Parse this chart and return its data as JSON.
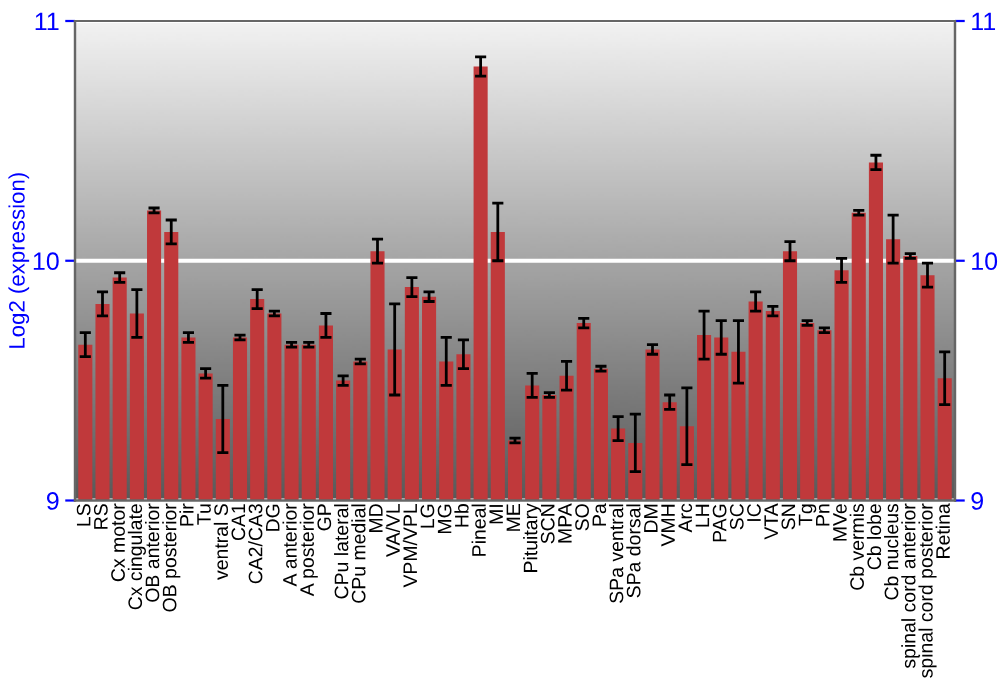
{
  "chart_data": {
    "type": "bar",
    "ylabel": "Log2 (expression)",
    "categories": [
      "LS",
      "RS",
      "Cx motor",
      "Cx cingulate",
      "OB anterior",
      "OB posterior",
      "Pir",
      "Tu",
      "ventral S",
      "CA1",
      "CA2/CA3",
      "DG",
      "A anterior",
      "A posterior",
      "GP",
      "CPu lateral",
      "CPu medial",
      "MD",
      "VA/VL",
      "VPM/VPL",
      "LG",
      "MG",
      "Hb",
      "Pineal",
      "MI",
      "ME",
      "Pituitary",
      "SCN",
      "MPA",
      "SO",
      "Pa",
      "SPa ventral",
      "SPa dorsal",
      "DM",
      "VMH",
      "Arc",
      "LH",
      "PAG",
      "SC",
      "IC",
      "VTA",
      "SN",
      "Tg",
      "Pn",
      "MVe",
      "Cb vermis",
      "Cb lobe",
      "Cb nucleus",
      "spinal cord anterior",
      "spinal cord posterior",
      "Retina"
    ],
    "values": [
      9.65,
      9.82,
      9.93,
      9.78,
      10.21,
      10.12,
      9.68,
      9.53,
      9.34,
      9.68,
      9.84,
      9.78,
      9.65,
      9.65,
      9.73,
      9.5,
      9.58,
      10.04,
      9.63,
      9.89,
      9.85,
      9.58,
      9.61,
      10.81,
      10.12,
      9.25,
      9.48,
      9.44,
      9.52,
      9.74,
      9.55,
      9.3,
      9.24,
      9.63,
      9.41,
      9.31,
      9.69,
      9.68,
      9.62,
      9.83,
      9.79,
      10.04,
      9.74,
      9.71,
      9.96,
      10.2,
      10.41,
      10.09,
      10.02,
      9.94,
      9.51
    ],
    "errors": [
      0.05,
      0.05,
      0.02,
      0.1,
      0.01,
      0.05,
      0.02,
      0.02,
      0.14,
      0.01,
      0.04,
      0.01,
      0.01,
      0.01,
      0.05,
      0.02,
      0.01,
      0.05,
      0.19,
      0.04,
      0.02,
      0.1,
      0.06,
      0.04,
      0.12,
      0.01,
      0.05,
      0.01,
      0.06,
      0.02,
      0.01,
      0.05,
      0.12,
      0.02,
      0.03,
      0.16,
      0.1,
      0.07,
      0.13,
      0.04,
      0.02,
      0.04,
      0.01,
      0.01,
      0.05,
      0.01,
      0.03,
      0.1,
      0.01,
      0.05,
      0.11
    ],
    "color": "#c0393b",
    "ylim": [
      9,
      11
    ],
    "yticks": [
      9,
      10,
      11
    ],
    "y2lim": [
      9,
      11
    ],
    "y2ticks": [
      9,
      10,
      11
    ],
    "grid": "y"
  }
}
